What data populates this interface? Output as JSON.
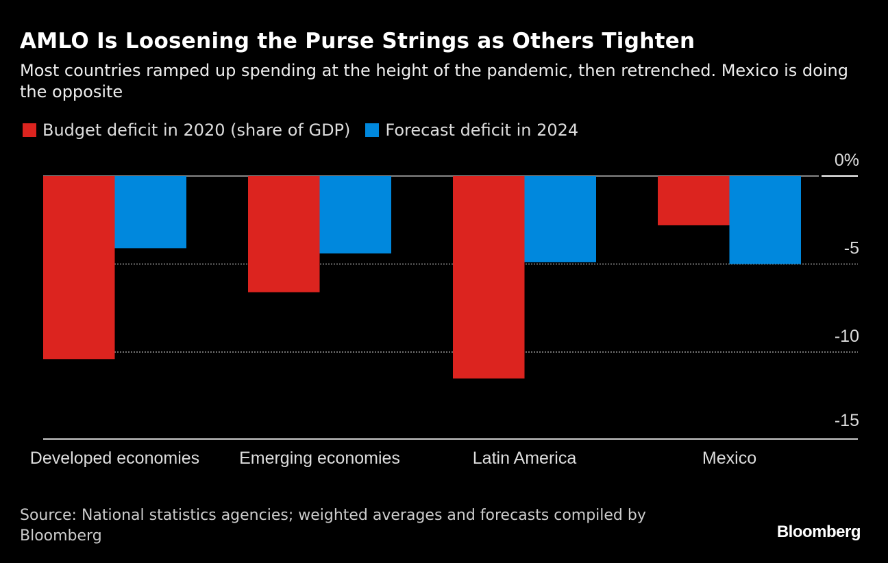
{
  "title": "AMLO Is Loosening the Purse Strings as Others Tighten",
  "subtitle": "Most countries ramped up spending at the height of the pandemic, then retrenched. Mexico is doing the opposite",
  "source": "Source: National statistics agencies; weighted averages and forecasts compiled by Bloomberg",
  "logo": "Bloomberg",
  "colors": {
    "series1": "#dc241f",
    "series2": "#0088dd",
    "background": "#000000"
  },
  "chart_data": {
    "type": "bar",
    "categories": [
      "Developed economies",
      "Emerging economies",
      "Latin America",
      "Mexico"
    ],
    "series": [
      {
        "name": "Budget deficit in 2020 (share of GDP)",
        "values": [
          -10.4,
          -6.6,
          -11.5,
          -2.8
        ]
      },
      {
        "name": "Forecast deficit in 2024",
        "values": [
          -4.1,
          -4.4,
          -4.9,
          -5.0
        ]
      }
    ],
    "yticks": [
      0,
      -5,
      -10,
      -15
    ],
    "ytick_labels": [
      "0%",
      "-5",
      "-10",
      "-15"
    ],
    "ylim": [
      -15,
      0
    ],
    "grid": true,
    "legend_position": "top-left"
  }
}
